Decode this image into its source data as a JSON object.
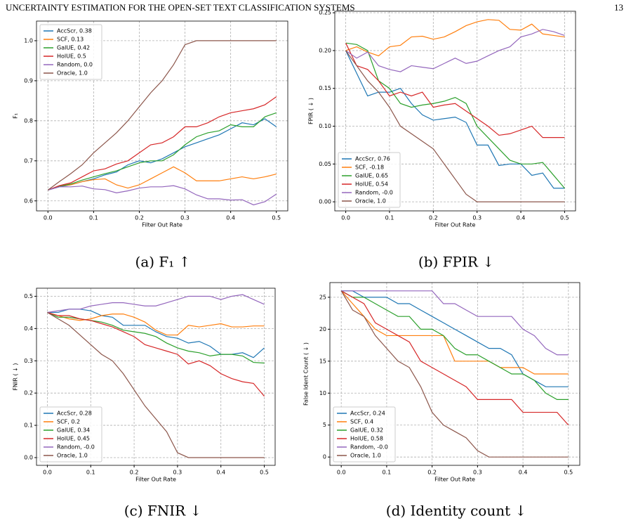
{
  "header": {
    "title": "UNCERTAINTY ESTIMATION FOR THE OPEN-SET TEXT CLASSIFICATION SYSTEMS",
    "page": "13"
  },
  "captions": [
    "(a) F₁ ↑",
    "(b) FPIR ↓",
    "(c) FNIR ↓",
    "(d) Identity count ↓"
  ],
  "chart_data": [
    {
      "type": "line",
      "xlabel": "Filter Out Rate",
      "ylabel": "F₁",
      "legend": "upper left",
      "grid": true,
      "x": [
        0,
        0.025,
        0.05,
        0.075,
        0.1,
        0.125,
        0.15,
        0.175,
        0.2,
        0.225,
        0.25,
        0.275,
        0.3,
        0.325,
        0.35,
        0.375,
        0.4,
        0.425,
        0.45,
        0.475,
        0.5
      ],
      "xlim": [
        -0.025,
        0.525
      ],
      "xticks": [
        {
          "value": 0,
          "label": "0.0"
        },
        0.1,
        0.2,
        0.3,
        0.4,
        0.5
      ],
      "ylim": [
        0.575,
        1.049
      ],
      "yticks": [
        0.6,
        0.7,
        0.8,
        0.9,
        {
          "value": 1,
          "label": "1.0"
        }
      ],
      "series": [
        {
          "name": "AccScr, 0.38",
          "color": "#1f77b4",
          "values": [
            0.627,
            0.635,
            0.64,
            0.648,
            0.655,
            0.665,
            0.672,
            0.69,
            0.7,
            0.695,
            0.705,
            0.72,
            0.735,
            0.745,
            0.755,
            0.765,
            0.78,
            0.795,
            0.79,
            0.805,
            0.785
          ]
        },
        {
          "name": "SCF, 0.13",
          "color": "#ff7f0e",
          "values": [
            0.627,
            0.637,
            0.64,
            0.648,
            0.653,
            0.655,
            0.64,
            0.632,
            0.64,
            0.655,
            0.67,
            0.685,
            0.67,
            0.65,
            0.65,
            0.65,
            0.655,
            0.66,
            0.655,
            0.66,
            0.667
          ]
        },
        {
          "name": "GalUE, 0.42",
          "color": "#2ca02c",
          "values": [
            0.627,
            0.637,
            0.642,
            0.652,
            0.66,
            0.668,
            0.675,
            0.685,
            0.695,
            0.7,
            0.7,
            0.715,
            0.74,
            0.76,
            0.77,
            0.775,
            0.79,
            0.785,
            0.785,
            0.81,
            0.82
          ]
        },
        {
          "name": "HolUE, 0.5",
          "color": "#d62728",
          "values": [
            0.627,
            0.638,
            0.645,
            0.66,
            0.675,
            0.68,
            0.692,
            0.7,
            0.72,
            0.74,
            0.745,
            0.76,
            0.785,
            0.785,
            0.795,
            0.81,
            0.82,
            0.825,
            0.83,
            0.84,
            0.86
          ]
        },
        {
          "name": "Random, 0.0",
          "color": "#9467bd",
          "values": [
            0.627,
            0.635,
            0.635,
            0.637,
            0.63,
            0.628,
            0.62,
            0.625,
            0.632,
            0.635,
            0.635,
            0.638,
            0.63,
            0.615,
            0.605,
            0.605,
            0.602,
            0.603,
            0.59,
            0.598,
            0.617
          ]
        },
        {
          "name": "Oracle, 1.0",
          "color": "#8c564b",
          "values": [
            0.627,
            0.648,
            0.668,
            0.69,
            0.72,
            0.745,
            0.77,
            0.8,
            0.835,
            0.87,
            0.9,
            0.94,
            0.99,
            1,
            1,
            1,
            1,
            1,
            1,
            1,
            1
          ]
        }
      ]
    },
    {
      "type": "line",
      "xlabel": "Filter Out Rate",
      "ylabel": "FPIR ( ↓ )",
      "legend": "lower left",
      "grid": true,
      "x": [
        0,
        0.025,
        0.05,
        0.075,
        0.1,
        0.125,
        0.15,
        0.175,
        0.2,
        0.225,
        0.25,
        0.275,
        0.3,
        0.325,
        0.35,
        0.375,
        0.4,
        0.425,
        0.45,
        0.475,
        0.5
      ],
      "xlim": [
        -0.025,
        0.525
      ],
      "xticks": [
        {
          "value": 0,
          "label": "0.0"
        },
        0.1,
        0.2,
        0.3,
        0.4,
        0.5
      ],
      "ylim": [
        -0.012,
        0.252
      ],
      "yticks": [
        {
          "value": 0,
          "label": "0.00"
        },
        0.05,
        {
          "value": 0.1,
          "label": "0.10"
        },
        0.15,
        {
          "value": 0.2,
          "label": "0.20"
        },
        0.25
      ],
      "series": [
        {
          "name": "AccScr, 0.76",
          "color": "#1f77b4",
          "values": [
            0.2,
            0.17,
            0.14,
            0.145,
            0.145,
            0.15,
            0.13,
            0.115,
            0.108,
            0.11,
            0.112,
            0.105,
            0.075,
            0.075,
            0.048,
            0.05,
            0.05,
            0.035,
            0.038,
            0.018,
            0.018
          ]
        },
        {
          "name": "SCF, -0.18",
          "color": "#ff7f0e",
          "values": [
            0.2,
            0.205,
            0.198,
            0.193,
            0.205,
            0.207,
            0.218,
            0.219,
            0.215,
            0.218,
            0.225,
            0.233,
            0.238,
            0.241,
            0.24,
            0.228,
            0.227,
            0.235,
            0.222,
            0.22,
            0.218
          ]
        },
        {
          "name": "GalUE, 0.65",
          "color": "#2ca02c",
          "values": [
            0.21,
            0.208,
            0.2,
            0.16,
            0.15,
            0.13,
            0.125,
            0.128,
            0.13,
            0.133,
            0.138,
            0.13,
            0.1,
            0.085,
            0.07,
            0.055,
            0.05,
            0.05,
            0.052,
            0.035,
            0.018
          ]
        },
        {
          "name": "HolUE, 0.54",
          "color": "#d62728",
          "values": [
            0.21,
            0.18,
            0.175,
            0.16,
            0.14,
            0.145,
            0.14,
            0.145,
            0.125,
            0.128,
            0.13,
            0.12,
            0.11,
            0.1,
            0.088,
            0.09,
            0.095,
            0.1,
            0.085,
            0.085,
            0.085
          ]
        },
        {
          "name": "Random, -0.0",
          "color": "#9467bd",
          "values": [
            0.2,
            0.19,
            0.198,
            0.18,
            0.175,
            0.172,
            0.18,
            0.178,
            0.176,
            0.183,
            0.19,
            0.183,
            0.186,
            0.193,
            0.2,
            0.205,
            0.218,
            0.222,
            0.228,
            0.225,
            0.22
          ]
        },
        {
          "name": "Oracle, 1.0",
          "color": "#8c564b",
          "values": [
            0.2,
            0.18,
            0.16,
            0.145,
            0.125,
            0.1,
            0.09,
            0.08,
            0.07,
            0.05,
            0.03,
            0.01,
            0,
            0,
            0,
            0,
            0,
            0,
            0,
            0,
            0
          ]
        }
      ]
    },
    {
      "type": "line",
      "xlabel": "Filter Out Rate",
      "ylabel": "FNIR ( ↓ )",
      "legend": "lower left",
      "grid": true,
      "x": [
        0,
        0.025,
        0.05,
        0.075,
        0.1,
        0.125,
        0.15,
        0.175,
        0.2,
        0.225,
        0.25,
        0.275,
        0.3,
        0.325,
        0.35,
        0.375,
        0.4,
        0.425,
        0.45,
        0.475,
        0.5
      ],
      "xlim": [
        -0.025,
        0.525
      ],
      "xticks": [
        {
          "value": 0,
          "label": "0.0"
        },
        0.1,
        0.2,
        0.3,
        0.4,
        0.5
      ],
      "ylim": [
        -0.024,
        0.525
      ],
      "yticks": [
        {
          "value": 0,
          "label": "0.0"
        },
        0.1,
        0.2,
        0.3,
        0.4,
        0.5
      ],
      "series": [
        {
          "name": "AccScr, 0.28",
          "color": "#1f77b4",
          "values": [
            0.45,
            0.45,
            0.46,
            0.46,
            0.455,
            0.44,
            0.435,
            0.41,
            0.41,
            0.41,
            0.39,
            0.375,
            0.37,
            0.355,
            0.36,
            0.345,
            0.32,
            0.32,
            0.325,
            0.31,
            0.34
          ]
        },
        {
          "name": "SCF, 0.2",
          "color": "#ff7f0e",
          "values": [
            0.45,
            0.44,
            0.43,
            0.425,
            0.43,
            0.44,
            0.445,
            0.445,
            0.435,
            0.42,
            0.395,
            0.38,
            0.38,
            0.41,
            0.405,
            0.41,
            0.415,
            0.405,
            0.405,
            0.408,
            0.408
          ]
        },
        {
          "name": "GalUE, 0.34",
          "color": "#2ca02c",
          "values": [
            0.45,
            0.435,
            0.435,
            0.43,
            0.425,
            0.42,
            0.41,
            0.395,
            0.39,
            0.385,
            0.375,
            0.355,
            0.34,
            0.33,
            0.325,
            0.315,
            0.32,
            0.32,
            0.315,
            0.295,
            0.293
          ]
        },
        {
          "name": "HolUE, 0.45",
          "color": "#d62728",
          "values": [
            0.45,
            0.44,
            0.44,
            0.43,
            0.425,
            0.415,
            0.405,
            0.39,
            0.375,
            0.35,
            0.34,
            0.33,
            0.32,
            0.29,
            0.3,
            0.285,
            0.26,
            0.245,
            0.235,
            0.23,
            0.19
          ]
        },
        {
          "name": "Random, -0.0",
          "color": "#9467bd",
          "values": [
            0.45,
            0.455,
            0.46,
            0.46,
            0.47,
            0.475,
            0.48,
            0.48,
            0.475,
            0.47,
            0.47,
            0.48,
            0.49,
            0.5,
            0.5,
            0.5,
            0.49,
            0.5,
            0.505,
            0.49,
            0.475
          ]
        },
        {
          "name": "Oracle, 1.0",
          "color": "#8c564b",
          "values": [
            0.45,
            0.43,
            0.41,
            0.38,
            0.35,
            0.32,
            0.3,
            0.26,
            0.21,
            0.16,
            0.12,
            0.08,
            0.015,
            0,
            0,
            0,
            0,
            0,
            0,
            0,
            0
          ]
        }
      ]
    },
    {
      "type": "line",
      "xlabel": "Filter Out Rate",
      "ylabel": "False Ident Count ( ↓ )",
      "legend": "lower left",
      "grid": true,
      "x": [
        0,
        0.025,
        0.05,
        0.075,
        0.1,
        0.125,
        0.15,
        0.175,
        0.2,
        0.225,
        0.25,
        0.275,
        0.3,
        0.325,
        0.35,
        0.375,
        0.4,
        0.425,
        0.45,
        0.475,
        0.5
      ],
      "xlim": [
        -0.025,
        0.525
      ],
      "xticks": [
        {
          "value": 0,
          "label": "0.0"
        },
        0.1,
        0.2,
        0.3,
        0.4,
        0.5
      ],
      "ylim": [
        -1.3,
        27.3
      ],
      "yticks": [
        0,
        5,
        10,
        15,
        20,
        25
      ],
      "series": [
        {
          "name": "AccScr, 0.24",
          "color": "#1f77b4",
          "values": [
            26,
            26,
            25,
            25,
            25,
            24,
            24,
            23,
            22,
            21,
            20,
            19,
            18,
            17,
            17,
            16,
            13,
            12,
            11,
            11,
            11
          ]
        },
        {
          "name": "SCF, 0.4",
          "color": "#ff7f0e",
          "values": [
            26,
            24,
            22,
            20,
            19,
            19,
            19,
            19,
            19,
            19,
            15,
            15,
            15,
            15,
            14,
            14,
            14,
            13,
            13,
            13,
            13
          ]
        },
        {
          "name": "GalUE, 0.32",
          "color": "#2ca02c",
          "values": [
            26,
            25,
            25,
            24,
            23,
            22,
            22,
            20,
            20,
            19,
            17,
            16,
            16,
            15,
            14,
            13,
            13,
            12,
            10,
            9,
            9
          ]
        },
        {
          "name": "HolUE, 0.58",
          "color": "#d62728",
          "values": [
            26,
            25,
            24,
            21,
            20,
            19,
            18,
            15,
            14,
            13,
            12,
            11,
            9,
            9,
            9,
            9,
            7,
            7,
            7,
            7,
            5
          ]
        },
        {
          "name": "Random, -0.0",
          "color": "#9467bd",
          "values": [
            26,
            26,
            26,
            26,
            26,
            26,
            26,
            26,
            26,
            24,
            24,
            23,
            22,
            22,
            22,
            22,
            20,
            19,
            17,
            16,
            16
          ]
        },
        {
          "name": "Oracle, 1.0",
          "color": "#8c564b",
          "values": [
            26,
            23,
            22,
            19,
            17,
            15,
            14,
            11,
            7,
            5,
            4,
            3,
            1,
            0,
            0,
            0,
            0,
            0,
            0,
            0,
            0
          ]
        }
      ]
    }
  ]
}
